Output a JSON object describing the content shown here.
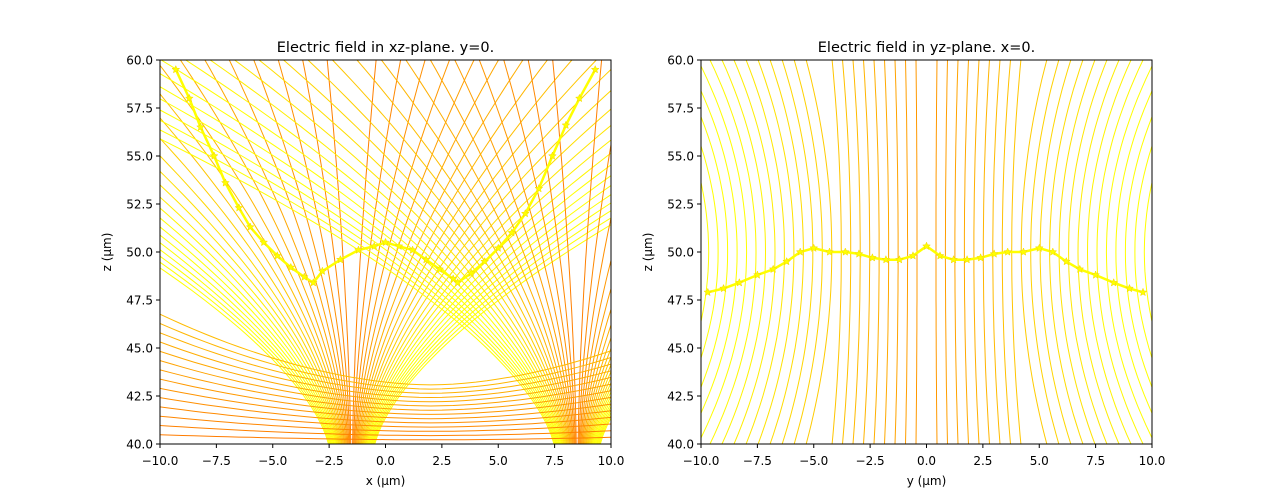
{
  "chart_data": [
    {
      "type": "streamline",
      "title": "Electric field in xz-plane. y=0.",
      "xlabel": "x (μm)",
      "ylabel": "z (μm)",
      "xlim": [
        -10,
        10
      ],
      "ylim": [
        40,
        60
      ],
      "xticks": [
        "−10.0",
        "−7.5",
        "−5.0",
        "−2.5",
        "0.0",
        "2.5",
        "5.0",
        "7.5",
        "10.0"
      ],
      "yticks": [
        "40.0",
        "42.5",
        "45.0",
        "47.5",
        "50.0",
        "52.5",
        "55.0",
        "57.5",
        "60.0"
      ],
      "grid": false,
      "colors": {
        "low_z": "#ff7700",
        "high_z": "#ffff00"
      },
      "marked_curve": {
        "x": [
          -9.3,
          -8.7,
          -8.2,
          -7.6,
          -7.1,
          -6.5,
          -6.0,
          -5.4,
          -4.8,
          -4.2,
          -3.6,
          -3.2,
          -2.8,
          -2.0,
          -1.2,
          -0.5,
          0.0,
          0.6,
          1.2,
          1.8,
          2.4,
          3.0,
          3.2,
          3.8,
          4.4,
          5.0,
          5.6,
          6.2,
          6.8,
          7.4,
          8.0,
          8.6,
          9.3
        ],
        "z": [
          59.5,
          58.0,
          56.5,
          55.0,
          53.6,
          52.3,
          51.3,
          50.5,
          49.8,
          49.2,
          48.7,
          48.4,
          49.0,
          49.6,
          50.1,
          50.3,
          50.5,
          50.3,
          50.1,
          49.6,
          49.1,
          48.6,
          48.4,
          48.9,
          49.5,
          50.2,
          51.0,
          52.0,
          53.3,
          55.0,
          56.6,
          58.0,
          59.5
        ]
      }
    },
    {
      "type": "streamline",
      "title": "Electric field in yz-plane. x=0.",
      "xlabel": "y (μm)",
      "ylabel": "z (μm)",
      "xlim": [
        -10,
        10
      ],
      "ylim": [
        40,
        60
      ],
      "xticks": [
        "−10.0",
        "−7.5",
        "−5.0",
        "−2.5",
        "0.0",
        "2.5",
        "5.0",
        "7.5",
        "10.0"
      ],
      "yticks": [
        "40.0",
        "42.5",
        "45.0",
        "47.5",
        "50.0",
        "52.5",
        "55.0",
        "57.5",
        "60.0"
      ],
      "grid": false,
      "colors": {
        "low_z": "#ff7700",
        "high_z": "#ffff00"
      },
      "marked_curve": {
        "x": [
          -9.7,
          -9.0,
          -8.3,
          -7.5,
          -6.8,
          -6.2,
          -5.6,
          -5.0,
          -4.3,
          -3.6,
          -3.0,
          -2.4,
          -1.8,
          -1.2,
          -0.6,
          0.0,
          0.6,
          1.2,
          1.8,
          2.4,
          3.0,
          3.6,
          4.3,
          5.0,
          5.6,
          6.2,
          6.8,
          7.5,
          8.3,
          9.0,
          9.6
        ],
        "z": [
          47.9,
          48.1,
          48.4,
          48.8,
          49.1,
          49.5,
          50.0,
          50.2,
          50.0,
          50.0,
          49.9,
          49.7,
          49.6,
          49.6,
          49.8,
          50.3,
          49.8,
          49.6,
          49.6,
          49.7,
          49.9,
          50.0,
          50.0,
          50.2,
          50.0,
          49.5,
          49.1,
          48.8,
          48.4,
          48.1,
          47.9
        ]
      }
    }
  ]
}
